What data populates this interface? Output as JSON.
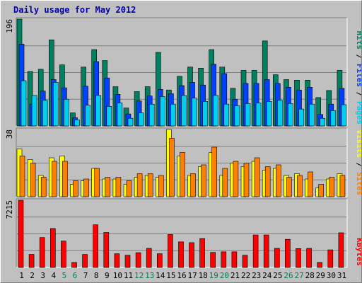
{
  "title": "Daily usage for May 2012",
  "colors": {
    "pages": "#00d0f0",
    "files": "#0040ff",
    "hits": "#008060",
    "visits": "#ffff00",
    "sites": "#ff8000",
    "kbytes": "#ff0000",
    "weekend_day": "#00805c",
    "axis_text": "#000000"
  },
  "chart_data": [
    {
      "type": "bar",
      "panel": "hits-files-pages",
      "ymax_label": "196",
      "ylim": [
        0,
        196
      ],
      "x": [
        1,
        2,
        3,
        4,
        5,
        6,
        7,
        8,
        9,
        10,
        11,
        12,
        13,
        14,
        15,
        16,
        17,
        18,
        19,
        20,
        21,
        22,
        23,
        24,
        25,
        26,
        27,
        28,
        29,
        30,
        31
      ],
      "weekend_days": [
        5,
        6,
        12,
        13,
        19,
        20,
        26,
        27
      ],
      "legend": [
        {
          "text": "Pages",
          "series": "pages"
        },
        {
          "text": "Files",
          "series": "files"
        },
        {
          "text": "Hits",
          "series": "hits"
        }
      ],
      "series": [
        {
          "key": "hits",
          "values": [
            196,
            100,
            104,
            158,
            112,
            24,
            108,
            140,
            120,
            72,
            33,
            63,
            72,
            135,
            66,
            91,
            108,
            106,
            140,
            108,
            69,
            102,
            102,
            156,
            94,
            85,
            84,
            84,
            52,
            65,
            102
          ]
        },
        {
          "key": "files",
          "values": [
            150,
            40,
            64,
            85,
            70,
            15,
            73,
            118,
            88,
            58,
            22,
            46,
            55,
            67,
            59,
            74,
            80,
            75,
            113,
            96,
            49,
            78,
            78,
            85,
            78,
            71,
            66,
            71,
            21,
            40,
            69
          ]
        },
        {
          "key": "pages",
          "values": [
            83,
            56,
            47,
            80,
            49,
            11,
            38,
            56,
            36,
            42,
            14,
            24,
            40,
            54,
            40,
            56,
            51,
            45,
            56,
            40,
            37,
            41,
            42,
            45,
            47,
            41,
            31,
            40,
            14,
            28,
            39
          ]
        }
      ]
    },
    {
      "type": "bar",
      "panel": "visits-sites",
      "ymax_label": "38",
      "ylim": [
        0,
        38
      ],
      "x": [
        1,
        2,
        3,
        4,
        5,
        6,
        7,
        8,
        9,
        10,
        11,
        12,
        13,
        14,
        15,
        16,
        17,
        18,
        19,
        20,
        21,
        22,
        23,
        24,
        25,
        26,
        27,
        28,
        29,
        30,
        31
      ],
      "legend": [
        {
          "text": "Sites",
          "series": "sites"
        },
        {
          "text": "Visits",
          "series": "visits"
        }
      ],
      "series": [
        {
          "key": "visits",
          "values": [
            27,
            21,
            12,
            22,
            23,
            7,
            9,
            16,
            10,
            10,
            7,
            11,
            12,
            11,
            38,
            23,
            12,
            17,
            25,
            12,
            19,
            17,
            20,
            15,
            16,
            12,
            13,
            10,
            5,
            10,
            13
          ]
        },
        {
          "key": "sites",
          "values": [
            23,
            19,
            11,
            20,
            20,
            9,
            10,
            16,
            11,
            11,
            9,
            13,
            13,
            12,
            33,
            25,
            13,
            18,
            28,
            16,
            20,
            19,
            22,
            17,
            18,
            11,
            12,
            14,
            7,
            11,
            12
          ]
        }
      ]
    },
    {
      "type": "bar",
      "panel": "kbytes",
      "ymax_label": "7215",
      "ylim": [
        0,
        7215
      ],
      "x": [
        1,
        2,
        3,
        4,
        5,
        6,
        7,
        8,
        9,
        10,
        11,
        12,
        13,
        14,
        15,
        16,
        17,
        18,
        19,
        20,
        21,
        22,
        23,
        24,
        25,
        26,
        27,
        28,
        29,
        30,
        31
      ],
      "legend": [
        {
          "text": "KBytes",
          "series": "kbytes"
        }
      ],
      "series": [
        {
          "key": "kbytes",
          "values": [
            7215,
            1406,
            3216,
            4183,
            2836,
            539,
            1394,
            4579,
            3757,
            1475,
            1314,
            1589,
            2047,
            1475,
            3532,
            2746,
            2665,
            3095,
            1616,
            1681,
            1681,
            1314,
            3483,
            3483,
            2047,
            3022,
            2030,
            2047,
            539,
            1893,
            3722
          ]
        }
      ]
    }
  ]
}
